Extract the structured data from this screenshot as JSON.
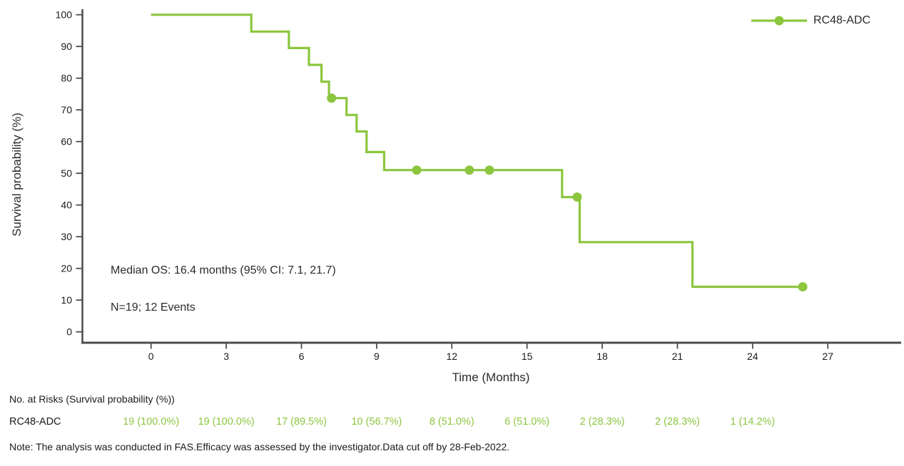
{
  "chart_data": {
    "type": "line",
    "subtype": "kaplan-meier-step",
    "xlabel": "Time (Months)",
    "ylabel": "Survival probability (%)",
    "xlim": [
      0,
      27
    ],
    "ylim": [
      0,
      100
    ],
    "x_ticks": [
      0,
      3,
      6,
      9,
      12,
      15,
      18,
      21,
      24,
      27
    ],
    "y_ticks": [
      0,
      10,
      20,
      30,
      40,
      50,
      60,
      70,
      80,
      90,
      100
    ],
    "grid": false,
    "legend": {
      "position": "top-right",
      "entries": [
        {
          "label": "RC48-ADC",
          "color": "#8CC63F",
          "marker": "line-dot"
        }
      ]
    },
    "series": [
      {
        "name": "RC48-ADC",
        "color": "#8CC63F",
        "steps": [
          [
            0,
            100
          ],
          [
            4.0,
            100
          ],
          [
            4.0,
            94.7
          ],
          [
            5.5,
            94.7
          ],
          [
            5.5,
            89.5
          ],
          [
            6.3,
            89.5
          ],
          [
            6.3,
            84.2
          ],
          [
            6.8,
            84.2
          ],
          [
            6.8,
            78.9
          ],
          [
            7.1,
            78.9
          ],
          [
            7.1,
            73.7
          ],
          [
            7.8,
            73.7
          ],
          [
            7.8,
            68.4
          ],
          [
            8.2,
            68.4
          ],
          [
            8.2,
            63.2
          ],
          [
            8.6,
            63.2
          ],
          [
            8.6,
            56.7
          ],
          [
            9.3,
            56.7
          ],
          [
            9.3,
            51.0
          ],
          [
            16.4,
            51.0
          ],
          [
            16.4,
            42.5
          ],
          [
            17.1,
            42.5
          ],
          [
            17.1,
            28.3
          ],
          [
            21.6,
            28.3
          ],
          [
            21.6,
            14.2
          ],
          [
            26.0,
            14.2
          ]
        ],
        "censor_points": [
          [
            7.2,
            73.7
          ],
          [
            10.6,
            51.0
          ],
          [
            12.7,
            51.0
          ],
          [
            13.5,
            51.0
          ],
          [
            17.0,
            42.5
          ],
          [
            26.0,
            14.2
          ]
        ]
      }
    ],
    "annotations": [
      "Median OS: 16.4 months (95% CI: 7.1, 21.7)",
      "N=19; 12 Events"
    ]
  },
  "axis": {
    "x_title": "Time (Months)",
    "y_title": "Survival probability (%)"
  },
  "legend": {
    "label": "RC48-ADC"
  },
  "annotations": {
    "median": "Median OS: 16.4 months (95% CI: 7.1, 21.7)",
    "n_events": "N=19; 12 Events"
  },
  "risk_table": {
    "header": "No. at Risks (Survival probability (%))",
    "row_label": "RC48-ADC",
    "times": [
      0,
      3,
      6,
      9,
      12,
      15,
      18,
      21,
      24
    ],
    "values": [
      "19 (100.0%)",
      "19 (100.0%)",
      "17 (89.5%)",
      "10 (56.7%)",
      "8 (51.0%)",
      "6 (51.0%)",
      "2 (28.3%)",
      "2 (28.3%)",
      "1 (14.2%)"
    ]
  },
  "note": "Note: The analysis was conducted in FAS.Efficacy was assessed by the investigator.Data cut off by 28-Feb-2022.",
  "colors": {
    "series": "#8CC63F",
    "axis": "#4D4D4D",
    "text": "#1A1A1A"
  }
}
